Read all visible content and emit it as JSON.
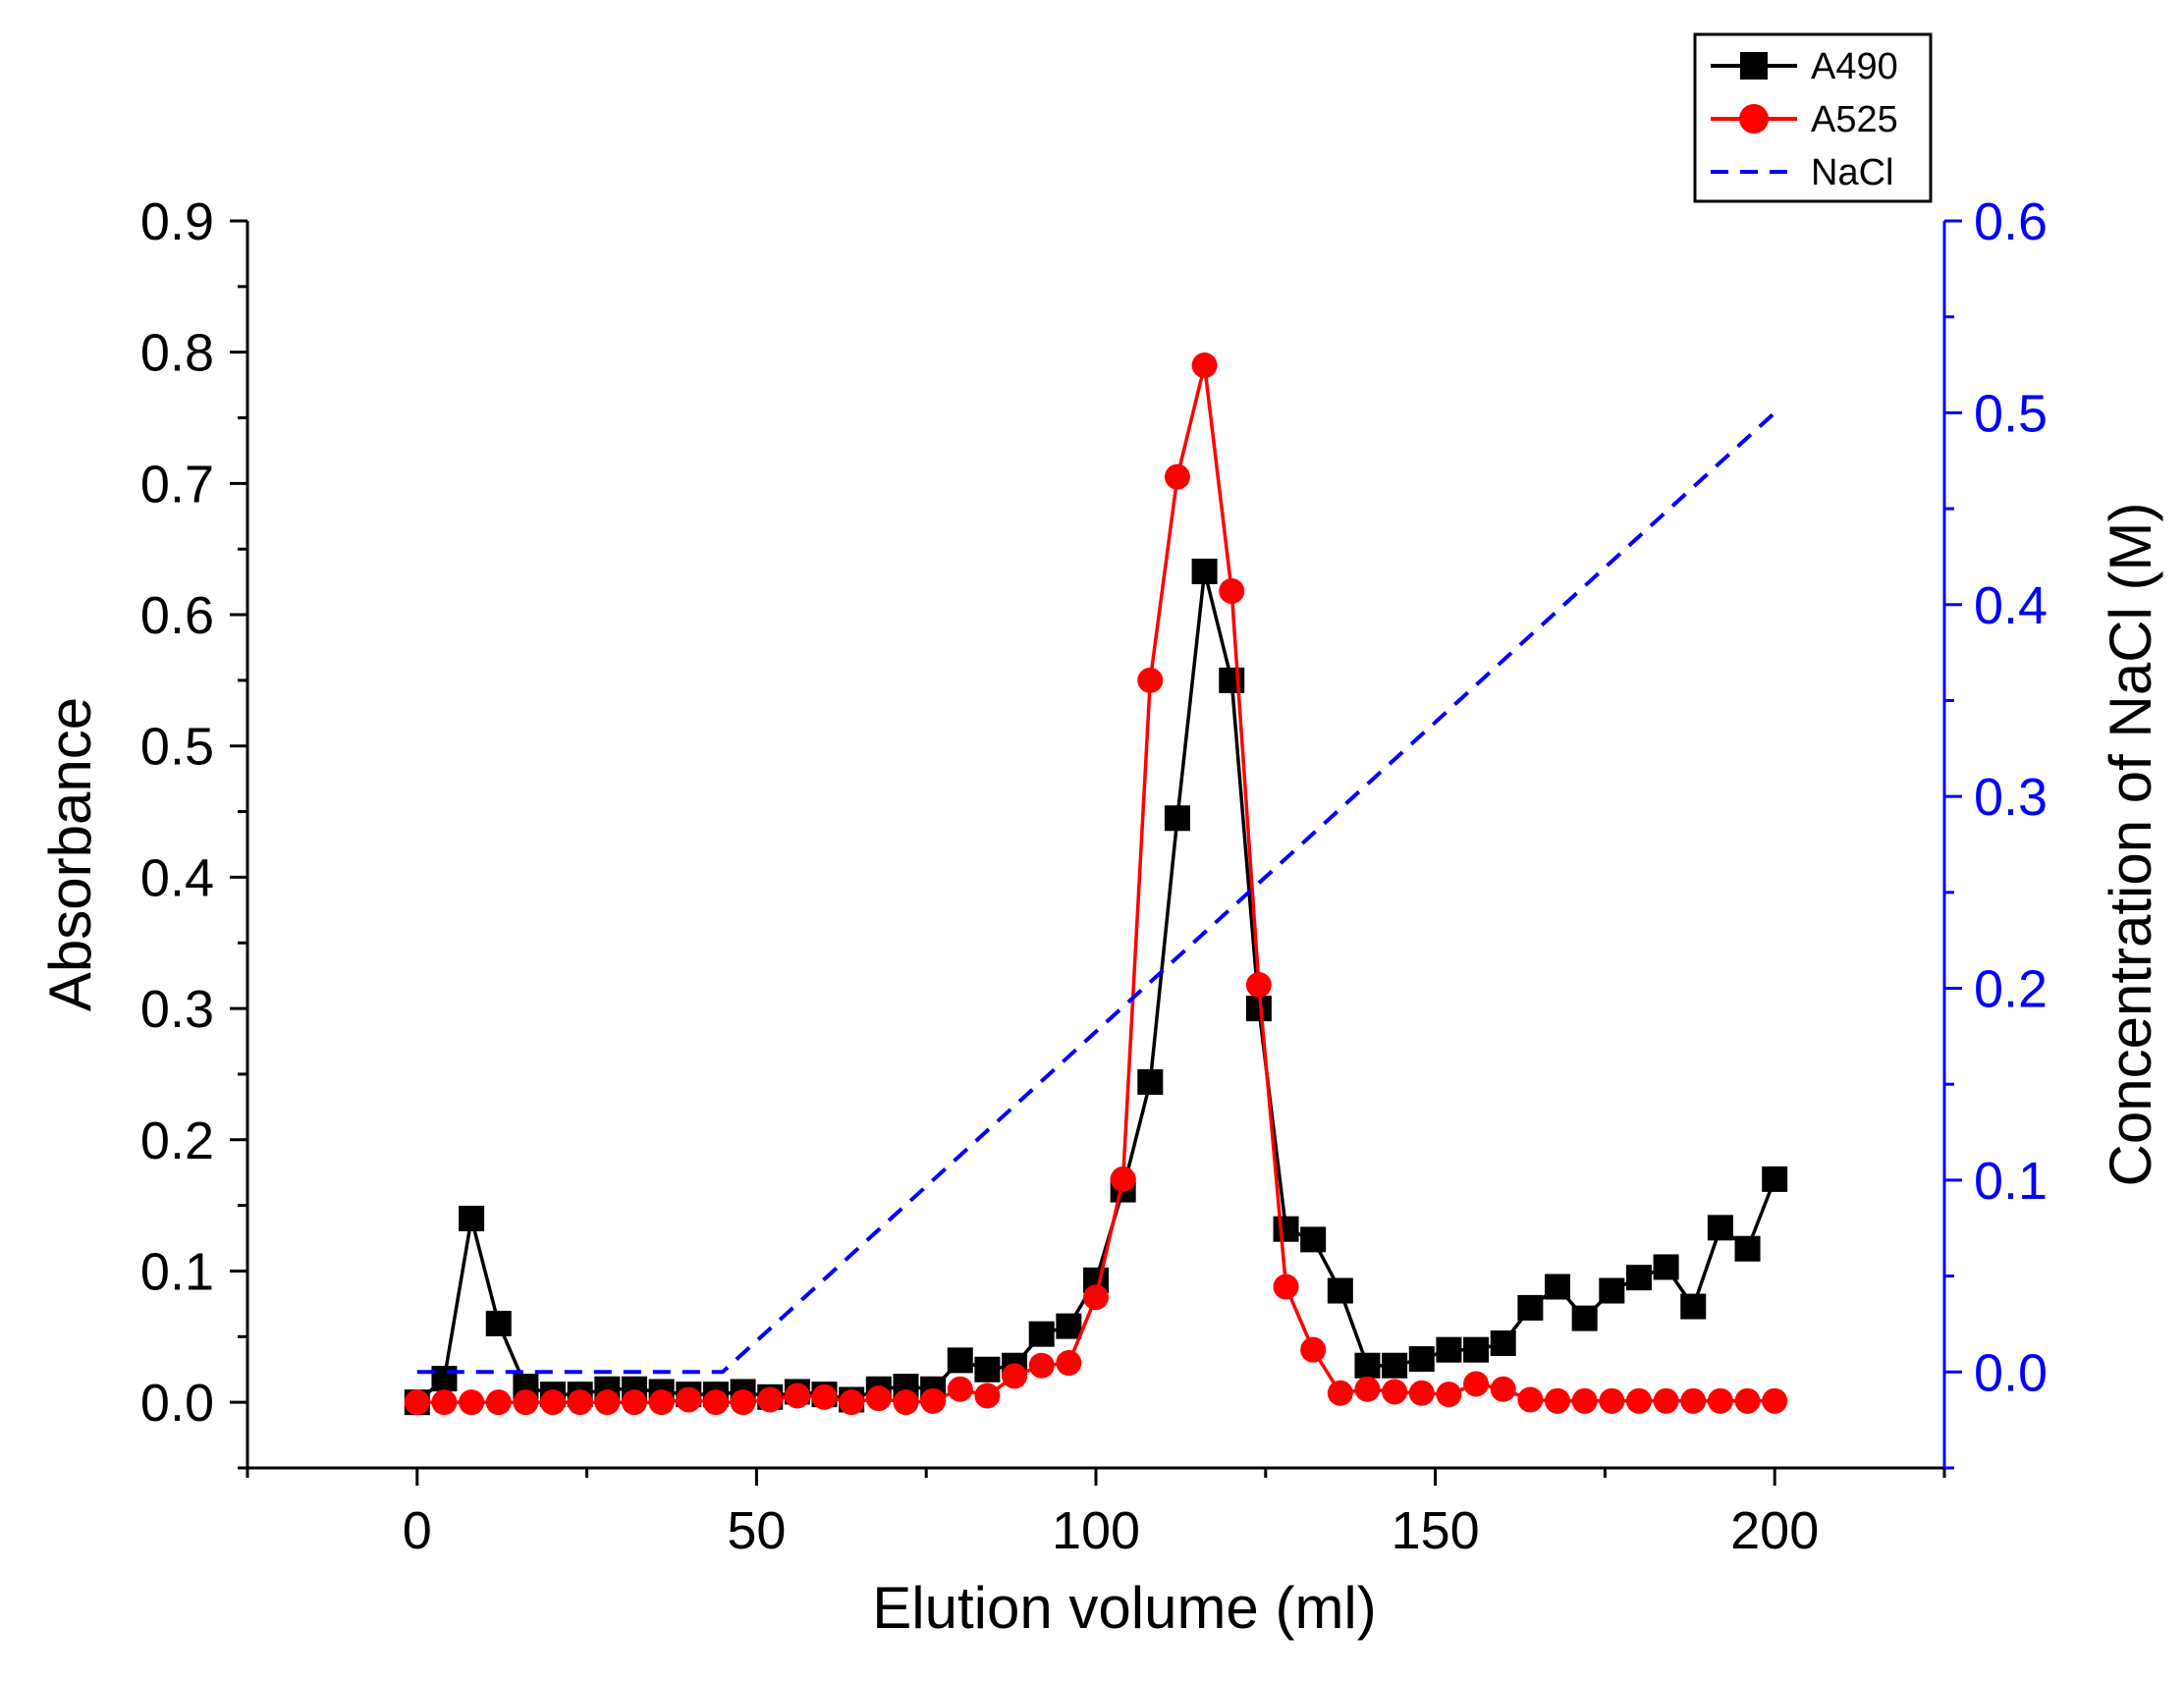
{
  "chart_data": {
    "type": "line",
    "title": "",
    "xlabel": "Elution volume (ml)",
    "ylabel": "Absorbance",
    "y2label": "Concentration of NaCl (M)",
    "xlim": [
      -25,
      225
    ],
    "ylim": [
      -0.05,
      0.9
    ],
    "y2lim": [
      -0.05,
      0.6
    ],
    "x_ticks": [
      0,
      50,
      100,
      150,
      200
    ],
    "y_ticks": [
      "0.0",
      "0.1",
      "0.2",
      "0.3",
      "0.4",
      "0.5",
      "0.6",
      "0.7",
      "0.8",
      "0.9"
    ],
    "y2_ticks": [
      "0.0",
      "0.1",
      "0.2",
      "0.3",
      "0.4",
      "0.5",
      "0.6"
    ],
    "grid": false,
    "legend_position": "top-right",
    "series": [
      {
        "name": "A490",
        "axis": "left",
        "color": "#000000",
        "marker": "square",
        "x": [
          0,
          4,
          8,
          12,
          16,
          20,
          24,
          28,
          32,
          36,
          40,
          44,
          48,
          52,
          56,
          60,
          64,
          68,
          72,
          76,
          80,
          84,
          88,
          92,
          96,
          100,
          104,
          108,
          112,
          116,
          120,
          124,
          128,
          132,
          136,
          140,
          144,
          148,
          152,
          156,
          160,
          164,
          168,
          172,
          176,
          180,
          184,
          188,
          192,
          196,
          200
        ],
        "values": [
          0.0,
          0.018,
          0.14,
          0.06,
          0.012,
          0.006,
          0.006,
          0.01,
          0.01,
          0.008,
          0.006,
          0.006,
          0.008,
          0.004,
          0.008,
          0.006,
          0.002,
          0.01,
          0.012,
          0.01,
          0.032,
          0.025,
          0.028,
          0.052,
          0.058,
          0.093,
          0.162,
          0.244,
          0.445,
          0.633,
          0.55,
          0.3,
          0.132,
          0.124,
          0.085,
          0.028,
          0.028,
          0.033,
          0.04,
          0.04,
          0.045,
          0.072,
          0.088,
          0.064,
          0.085,
          0.095,
          0.103,
          0.073,
          0.133,
          0.117,
          0.17
        ]
      },
      {
        "name": "A525",
        "axis": "left",
        "color": "#ff0000",
        "marker": "circle",
        "x": [
          0,
          4,
          8,
          12,
          16,
          20,
          24,
          28,
          32,
          36,
          40,
          44,
          48,
          52,
          56,
          60,
          64,
          68,
          72,
          76,
          80,
          84,
          88,
          92,
          96,
          100,
          104,
          108,
          112,
          116,
          120,
          124,
          128,
          132,
          136,
          140,
          144,
          148,
          152,
          156,
          160,
          164,
          168,
          172,
          176,
          180,
          184,
          188,
          192,
          196,
          200
        ],
        "values": [
          0.0,
          0.0,
          0.0,
          0.0,
          0.0,
          0.0,
          0.0,
          0.0,
          0.0,
          0.0,
          0.002,
          0.0,
          0.0,
          0.002,
          0.005,
          0.004,
          0.0,
          0.003,
          0.0,
          0.001,
          0.01,
          0.005,
          0.02,
          0.028,
          0.03,
          0.08,
          0.17,
          0.55,
          0.705,
          0.79,
          0.618,
          0.318,
          0.088,
          0.04,
          0.007,
          0.01,
          0.008,
          0.007,
          0.006,
          0.014,
          0.01,
          0.002,
          0.001,
          0.001,
          0.001,
          0.001,
          0.001,
          0.001,
          0.001,
          0.001,
          0.001
        ]
      },
      {
        "name": "NaCl",
        "axis": "right",
        "color": "#0000ff",
        "style": "dashed",
        "x": [
          0,
          45,
          200
        ],
        "values": [
          0.0,
          0.0,
          0.5
        ]
      }
    ]
  }
}
